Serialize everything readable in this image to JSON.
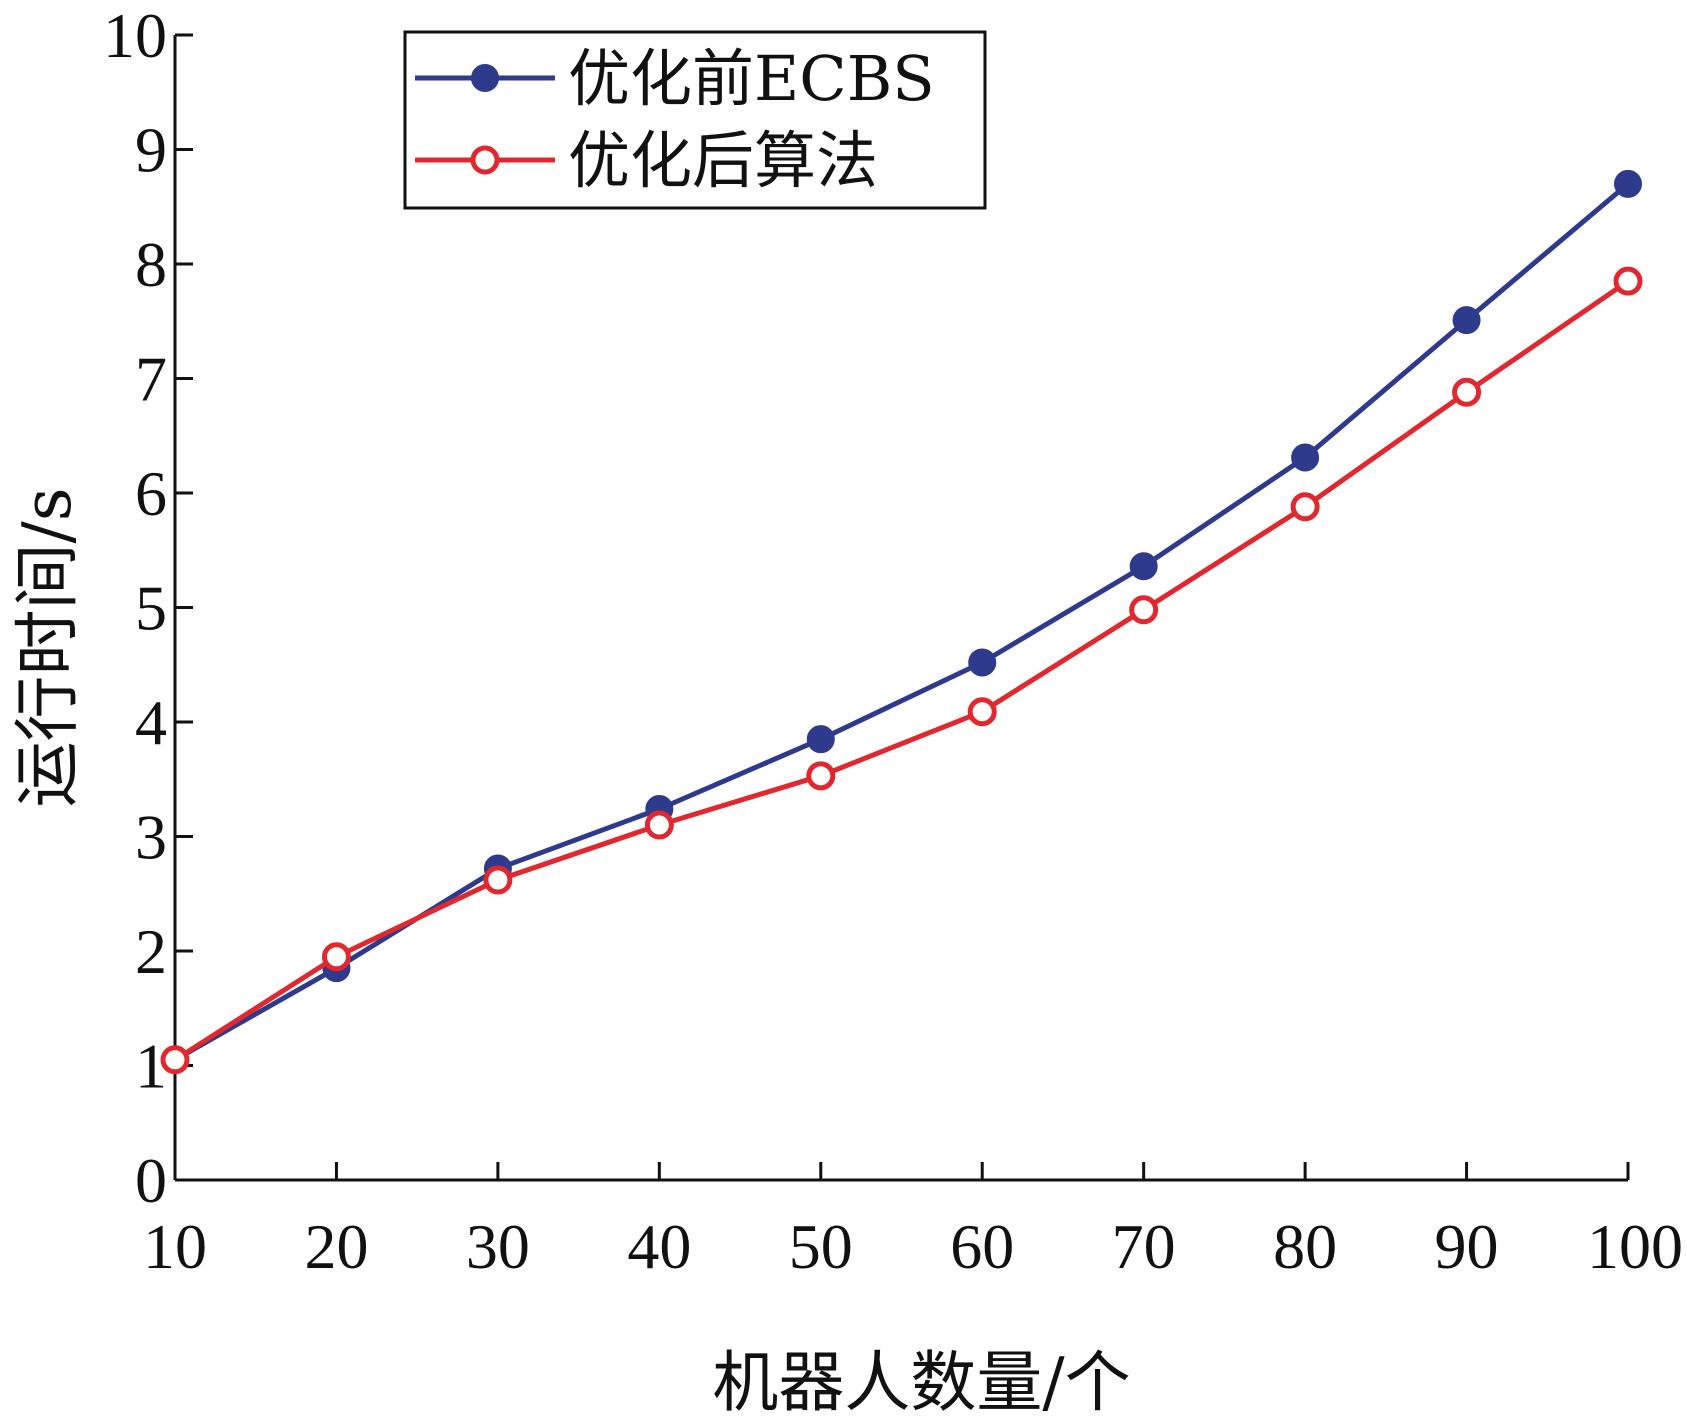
{
  "chart_data": {
    "type": "line",
    "title": "",
    "xlabel": "机器人数量/个",
    "ylabel": "运行时间/s",
    "x": [
      10,
      20,
      30,
      40,
      50,
      60,
      70,
      80,
      90,
      100
    ],
    "xlim": [
      10,
      100
    ],
    "ylim": [
      0,
      10
    ],
    "xticks": [
      "10",
      "20",
      "30",
      "40",
      "50",
      "60",
      "70",
      "80",
      "90",
      "100"
    ],
    "yticks": [
      "0",
      "1",
      "2",
      "3",
      "4",
      "5",
      "6",
      "7",
      "8",
      "9",
      "10"
    ],
    "grid": false,
    "legend": "top-left",
    "series": [
      {
        "name": "优化前ECBS",
        "color": "#2e3a8c",
        "marker": "filled-circle",
        "values": [
          1.05,
          1.85,
          2.72,
          3.24,
          3.85,
          4.52,
          5.36,
          6.31,
          7.51,
          8.7
        ]
      },
      {
        "name": "优化后算法",
        "color": "#e0282e",
        "marker": "open-circle",
        "values": [
          1.05,
          1.95,
          2.62,
          3.1,
          3.53,
          4.09,
          4.98,
          5.88,
          6.88,
          7.85
        ]
      }
    ]
  }
}
